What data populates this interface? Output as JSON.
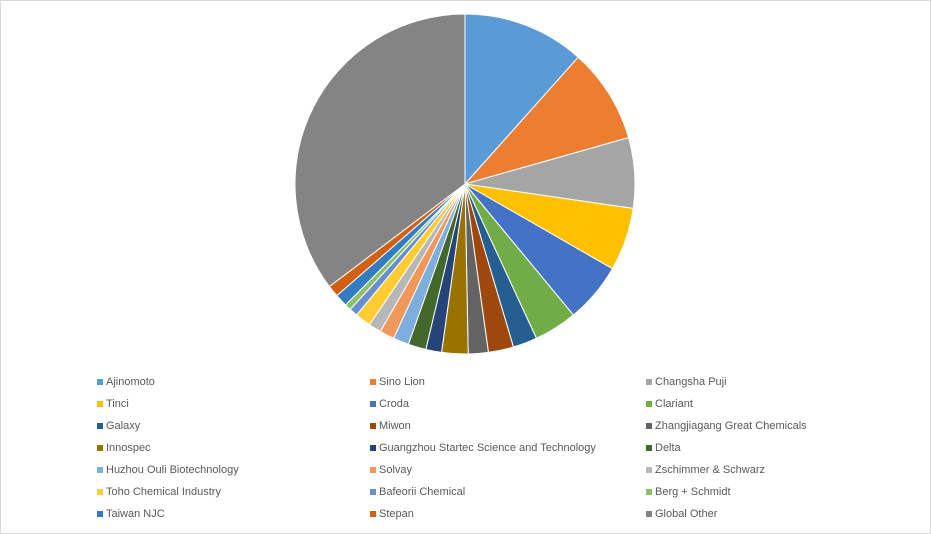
{
  "chart_data": {
    "type": "pie",
    "categories": [
      "Ajinomoto",
      "Sino Lion",
      "Changsha Puji",
      "Tinci",
      "Croda",
      "Clariant",
      "Galaxy",
      "Miwon",
      "Zhangjiagang Great Chemicals",
      "Innospec",
      "Guangzhou Startec Science and Technology",
      "Delta",
      "Huzhou Ouli Biotechnology",
      "Solvay",
      "Zschimmer & Schwarz",
      "Toho Chemical Industry",
      "Bafeorii Chemical",
      "Berg + Schmidt",
      "Taiwan NJC",
      "Stepan",
      "Global Other"
    ],
    "values": [
      11.6,
      9.0,
      6.7,
      6.0,
      5.7,
      4.1,
      2.3,
      2.4,
      1.9,
      2.5,
      1.5,
      1.7,
      1.5,
      1.4,
      1.2,
      1.5,
      0.8,
      0.6,
      1.2,
      1.1,
      35.3
    ],
    "colors": [
      "#5b9bd5",
      "#ed7d31",
      "#a5a5a5",
      "#ffc000",
      "#4472c4",
      "#70ad47",
      "#255e91",
      "#9e480e",
      "#636363",
      "#997300",
      "#264478",
      "#43682b",
      "#7cafdd",
      "#f1975a",
      "#b7b7b7",
      "#ffcd33",
      "#698ed0",
      "#8cc168",
      "#327dc2",
      "#d26012",
      "#848484"
    ]
  }
}
